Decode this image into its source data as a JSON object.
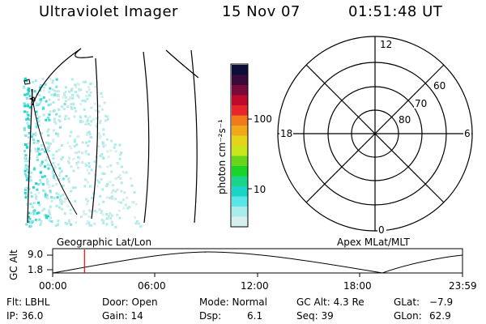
{
  "header": {
    "instrument": "Ultraviolet Imager",
    "date": "15 Nov 07",
    "time": "01:51:48 UT"
  },
  "colorbar": {
    "unit_label": "photon cm⁻²s⁻¹",
    "ticks": [
      "100",
      "10"
    ],
    "colors": [
      "#0d0d3a",
      "#3a0a3a",
      "#7a0a3a",
      "#bf0a2a",
      "#e6262a",
      "#f27a1a",
      "#f2a81a",
      "#e6d41a",
      "#c8e61a",
      "#6ad41a",
      "#1ad428",
      "#1ad48a",
      "#1ad4c8",
      "#5ae6e6",
      "#a8ecec",
      "#d8efef"
    ]
  },
  "polar_plot": {
    "mlt_labels": {
      "top": "12",
      "right": "6",
      "bottom": "0",
      "left": "18"
    },
    "lat_labels": [
      "60",
      "70",
      "80"
    ]
  },
  "timeline": {
    "left_label": "Geographic Lat/Lon",
    "right_label": "Apex MLat/MLT",
    "y_axis_label": "GC Alt",
    "y_ticks": [
      "9.0",
      "1.8"
    ],
    "x_ticks": [
      "00:00",
      "06:00",
      "12:00",
      "18:00",
      "23:59"
    ],
    "current_time": "01:51:48",
    "marker_color": "#ff0000"
  },
  "info": {
    "row1": {
      "filter": "Flt: LBHL",
      "door": "Door: Open",
      "mode": "Mode: Normal",
      "gc_alt": "GC Alt: 4.3 Re",
      "glat_label": "GLat:",
      "glat_value": "−7.9"
    },
    "row2": {
      "ip": "IP: 36.0",
      "gain": "Gain: 14",
      "dsp_label": "Dsp:",
      "dsp_value": "6.1",
      "seq": "Seq: 39",
      "glon_label": "GLon:",
      "glon_value": "62.9"
    }
  }
}
